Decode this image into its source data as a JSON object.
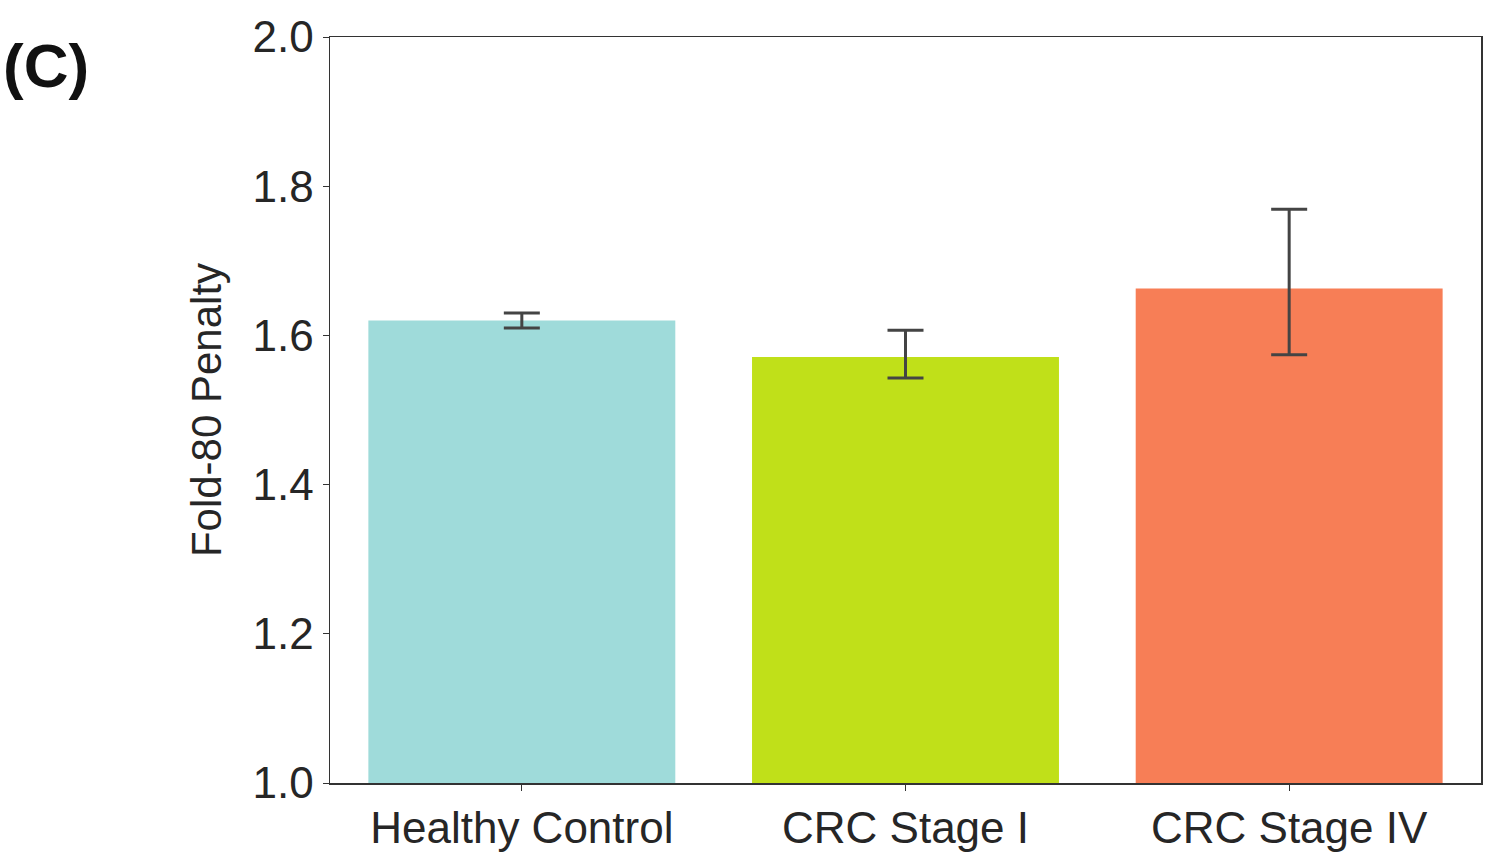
{
  "chart_data": {
    "type": "bar",
    "title": "(C)",
    "y_label": "Fold-80 Penalty",
    "categories": [
      "Healthy Control",
      "CRC Stage I",
      "CRC Stage IV"
    ],
    "values": [
      1.62,
      1.571,
      1.663
    ],
    "error_plus": [
      0.01,
      0.036,
      0.106
    ],
    "error_minus": [
      0.01,
      0.028,
      0.089
    ],
    "colors": [
      "#9fdbda",
      "#c0e019",
      "#f77e56"
    ],
    "ylim": [
      1.0,
      2.0
    ],
    "yticks": [
      {
        "value": 1.0,
        "label": "1.0"
      },
      1.2,
      1.4,
      1.6,
      1.8,
      {
        "value": 2.0,
        "label": "2.0"
      }
    ],
    "grid": false
  }
}
